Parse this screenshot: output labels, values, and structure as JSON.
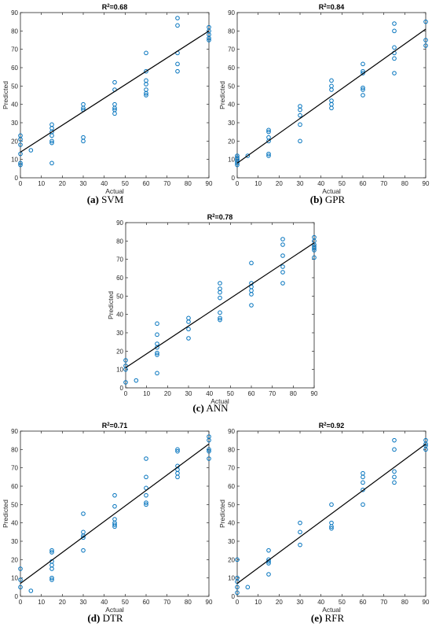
{
  "chart_data": [
    {
      "type": "scatter",
      "panel": "a",
      "caption_label": "(a)",
      "caption_text": "SVM",
      "title_main": "R",
      "title_sup": "2",
      "title_rest": "=0.68",
      "xlabel": "Actual",
      "ylabel": "Predicted",
      "xlim": [
        0,
        90
      ],
      "ylim": [
        0,
        90
      ],
      "xticks": [
        0,
        10,
        20,
        30,
        40,
        50,
        60,
        70,
        80,
        90
      ],
      "yticks": [
        0,
        10,
        20,
        30,
        40,
        50,
        60,
        70,
        80,
        90
      ],
      "grid": false,
      "series": [
        {
          "marker": "open-circle",
          "color": "#0072BD",
          "points": [
            [
              0,
              23
            ],
            [
              0,
              21
            ],
            [
              0,
              18
            ],
            [
              0,
              13
            ],
            [
              0,
              8
            ],
            [
              0,
              7
            ],
            [
              5,
              15
            ],
            [
              15,
              29
            ],
            [
              15,
              27
            ],
            [
              15,
              25
            ],
            [
              15,
              23
            ],
            [
              15,
              20
            ],
            [
              15,
              19
            ],
            [
              15,
              8
            ],
            [
              30,
              40
            ],
            [
              30,
              38
            ],
            [
              30,
              37
            ],
            [
              30,
              22
            ],
            [
              30,
              20
            ],
            [
              45,
              52
            ],
            [
              45,
              48
            ],
            [
              45,
              40
            ],
            [
              45,
              38
            ],
            [
              45,
              37
            ],
            [
              45,
              35
            ],
            [
              60,
              68
            ],
            [
              60,
              58
            ],
            [
              60,
              53
            ],
            [
              60,
              51
            ],
            [
              60,
              48
            ],
            [
              60,
              46
            ],
            [
              60,
              45
            ],
            [
              75,
              87
            ],
            [
              75,
              83
            ],
            [
              75,
              68
            ],
            [
              75,
              62
            ],
            [
              75,
              58
            ],
            [
              90,
              82
            ],
            [
              90,
              80
            ],
            [
              90,
              78
            ],
            [
              90,
              76
            ],
            [
              90,
              75
            ]
          ]
        },
        {
          "type": "line",
          "color": "#000000",
          "points": [
            [
              0,
              14
            ],
            [
              90,
              80
            ]
          ]
        }
      ]
    },
    {
      "type": "scatter",
      "panel": "b",
      "caption_label": "(b)",
      "caption_text": "GPR",
      "title_main": "R",
      "title_sup": "2",
      "title_rest": "=0.84",
      "xlabel": "Actual",
      "ylabel": "Predicted",
      "xlim": [
        0,
        90
      ],
      "ylim": [
        0,
        90
      ],
      "xticks": [
        0,
        10,
        20,
        30,
        40,
        50,
        60,
        70,
        80,
        90
      ],
      "yticks": [
        0,
        10,
        20,
        30,
        40,
        50,
        60,
        70,
        80,
        90
      ],
      "grid": false,
      "series": [
        {
          "marker": "open-circle",
          "color": "#0072BD",
          "points": [
            [
              0,
              12
            ],
            [
              0,
              11
            ],
            [
              0,
              10
            ],
            [
              0,
              9
            ],
            [
              0,
              8
            ],
            [
              0,
              7
            ],
            [
              5,
              12
            ],
            [
              15,
              26
            ],
            [
              15,
              25
            ],
            [
              15,
              22
            ],
            [
              15,
              20
            ],
            [
              15,
              13
            ],
            [
              15,
              12
            ],
            [
              30,
              39
            ],
            [
              30,
              37
            ],
            [
              30,
              34
            ],
            [
              30,
              29
            ],
            [
              30,
              20
            ],
            [
              45,
              53
            ],
            [
              45,
              50
            ],
            [
              45,
              48
            ],
            [
              45,
              42
            ],
            [
              45,
              40
            ],
            [
              45,
              38
            ],
            [
              60,
              62
            ],
            [
              60,
              58
            ],
            [
              60,
              57
            ],
            [
              60,
              49
            ],
            [
              60,
              48
            ],
            [
              60,
              45
            ],
            [
              75,
              84
            ],
            [
              75,
              80
            ],
            [
              75,
              71
            ],
            [
              75,
              68
            ],
            [
              75,
              65
            ],
            [
              75,
              57
            ],
            [
              90,
              85
            ],
            [
              90,
              75
            ],
            [
              90,
              72
            ]
          ]
        },
        {
          "type": "line",
          "color": "#000000",
          "points": [
            [
              0,
              8
            ],
            [
              90,
              81
            ]
          ]
        }
      ]
    },
    {
      "type": "scatter",
      "panel": "c",
      "caption_label": "(c)",
      "caption_text": "ANN",
      "title_main": "R",
      "title_sup": "2",
      "title_rest": "=0.78",
      "xlabel": "Actual",
      "ylabel": "Predicted",
      "xlim": [
        0,
        90
      ],
      "ylim": [
        0,
        90
      ],
      "xticks": [
        0,
        10,
        20,
        30,
        40,
        50,
        60,
        70,
        80,
        90
      ],
      "yticks": [
        0,
        10,
        20,
        30,
        40,
        50,
        60,
        70,
        80,
        90
      ],
      "grid": false,
      "series": [
        {
          "marker": "open-circle",
          "color": "#0072BD",
          "points": [
            [
              0,
              15
            ],
            [
              0,
              12
            ],
            [
              0,
              10
            ],
            [
              0,
              3
            ],
            [
              5,
              4
            ],
            [
              15,
              35
            ],
            [
              15,
              29
            ],
            [
              15,
              24
            ],
            [
              15,
              22
            ],
            [
              15,
              19
            ],
            [
              15,
              18
            ],
            [
              15,
              8
            ],
            [
              30,
              38
            ],
            [
              30,
              36
            ],
            [
              30,
              32
            ],
            [
              30,
              27
            ],
            [
              45,
              57
            ],
            [
              45,
              54
            ],
            [
              45,
              52
            ],
            [
              45,
              49
            ],
            [
              45,
              41
            ],
            [
              45,
              38
            ],
            [
              45,
              37
            ],
            [
              60,
              68
            ],
            [
              60,
              57
            ],
            [
              60,
              55
            ],
            [
              60,
              53
            ],
            [
              60,
              51
            ],
            [
              60,
              45
            ],
            [
              75,
              81
            ],
            [
              75,
              78
            ],
            [
              75,
              72
            ],
            [
              75,
              66
            ],
            [
              75,
              63
            ],
            [
              75,
              57
            ],
            [
              90,
              82
            ],
            [
              90,
              80
            ],
            [
              90,
              78
            ],
            [
              90,
              77
            ],
            [
              90,
              76
            ],
            [
              90,
              75
            ],
            [
              90,
              71
            ]
          ]
        },
        {
          "type": "line",
          "color": "#000000",
          "points": [
            [
              0,
              11
            ],
            [
              90,
              79
            ]
          ]
        }
      ]
    },
    {
      "type": "scatter",
      "panel": "d",
      "caption_label": "(d)",
      "caption_text": "DTR",
      "title_main": "R",
      "title_sup": "2",
      "title_rest": "=0.71",
      "xlabel": "Actual",
      "ylabel": "Predicted",
      "xlim": [
        0,
        90
      ],
      "ylim": [
        0,
        90
      ],
      "xticks": [
        0,
        10,
        20,
        30,
        40,
        50,
        60,
        70,
        80,
        90
      ],
      "yticks": [
        0,
        10,
        20,
        30,
        40,
        50,
        60,
        70,
        80,
        90
      ],
      "grid": false,
      "series": [
        {
          "marker": "open-circle",
          "color": "#0072BD",
          "points": [
            [
              0,
              15
            ],
            [
              0,
              9
            ],
            [
              0,
              5
            ],
            [
              5,
              3
            ],
            [
              15,
              25
            ],
            [
              15,
              24
            ],
            [
              15,
              19
            ],
            [
              15,
              17
            ],
            [
              15,
              15
            ],
            [
              15,
              10
            ],
            [
              15,
              9
            ],
            [
              30,
              45
            ],
            [
              30,
              35
            ],
            [
              30,
              33
            ],
            [
              30,
              32
            ],
            [
              30,
              25
            ],
            [
              45,
              55
            ],
            [
              45,
              49
            ],
            [
              45,
              42
            ],
            [
              45,
              40
            ],
            [
              45,
              39
            ],
            [
              45,
              38
            ],
            [
              60,
              75
            ],
            [
              60,
              65
            ],
            [
              60,
              59
            ],
            [
              60,
              55
            ],
            [
              60,
              51
            ],
            [
              60,
              50
            ],
            [
              75,
              80
            ],
            [
              75,
              79
            ],
            [
              75,
              71
            ],
            [
              75,
              69
            ],
            [
              75,
              67
            ],
            [
              75,
              65
            ],
            [
              90,
              87
            ],
            [
              90,
              85
            ],
            [
              90,
              80
            ],
            [
              90,
              79
            ],
            [
              90,
              75
            ]
          ]
        },
        {
          "type": "line",
          "color": "#000000",
          "points": [
            [
              0,
              7
            ],
            [
              90,
              83
            ]
          ]
        }
      ]
    },
    {
      "type": "scatter",
      "panel": "e",
      "caption_label": "(e)",
      "caption_text": "RFR",
      "title_main": "R",
      "title_sup": "2",
      "title_rest": "=0.92",
      "xlabel": "Actual",
      "ylabel": "Predicted",
      "xlim": [
        0,
        90
      ],
      "ylim": [
        0,
        90
      ],
      "xticks": [
        0,
        10,
        20,
        30,
        40,
        50,
        60,
        70,
        80,
        90
      ],
      "yticks": [
        0,
        10,
        20,
        30,
        40,
        50,
        60,
        70,
        80,
        90
      ],
      "grid": false,
      "series": [
        {
          "marker": "open-circle",
          "color": "#0072BD",
          "points": [
            [
              0,
              20
            ],
            [
              0,
              10
            ],
            [
              0,
              8
            ],
            [
              0,
              5
            ],
            [
              0,
              2
            ],
            [
              5,
              5
            ],
            [
              15,
              25
            ],
            [
              15,
              20
            ],
            [
              15,
              19
            ],
            [
              15,
              18
            ],
            [
              15,
              12
            ],
            [
              30,
              40
            ],
            [
              30,
              35
            ],
            [
              30,
              28
            ],
            [
              45,
              50
            ],
            [
              45,
              40
            ],
            [
              45,
              38
            ],
            [
              45,
              37
            ],
            [
              60,
              67
            ],
            [
              60,
              65
            ],
            [
              60,
              62
            ],
            [
              60,
              58
            ],
            [
              60,
              50
            ],
            [
              75,
              85
            ],
            [
              75,
              80
            ],
            [
              75,
              68
            ],
            [
              75,
              65
            ],
            [
              75,
              62
            ],
            [
              90,
              85
            ],
            [
              90,
              83
            ],
            [
              90,
              82
            ],
            [
              90,
              80
            ]
          ]
        },
        {
          "type": "line",
          "color": "#000000",
          "points": [
            [
              0,
              7
            ],
            [
              90,
              83
            ]
          ]
        }
      ]
    }
  ]
}
